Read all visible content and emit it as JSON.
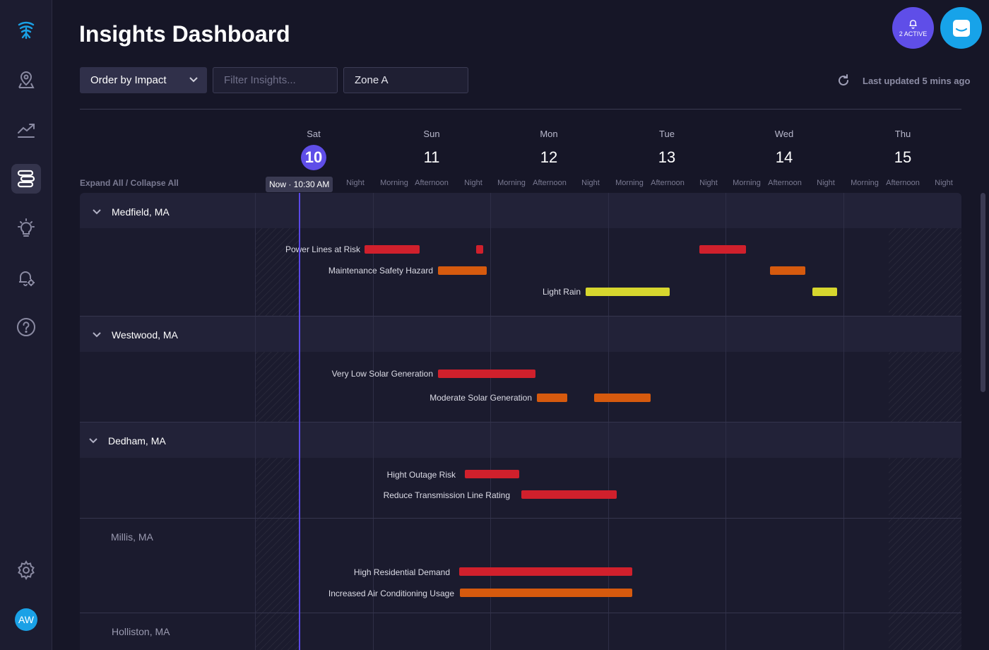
{
  "page_title": "Insights Dashboard",
  "sidebar": {
    "icons": [
      "logo-icon",
      "map-pin-icon",
      "trend-icon",
      "insights-icon",
      "lightbulb-icon",
      "alert-settings-icon",
      "help-icon",
      "settings-icon"
    ],
    "avatar_initials": "AW"
  },
  "header": {
    "notifications_label": "2 ACTIVE"
  },
  "toolbar": {
    "order_by": "Order by Impact",
    "filter_placeholder": "Filter Insights...",
    "zone_value": "Zone A",
    "last_updated": "Last updated 5 mins ago"
  },
  "timeline": {
    "expand_collapse": "Expand All / Collapse All",
    "now_label": "Now · 10:30 AM",
    "days": [
      {
        "name": "Sat",
        "num": "10",
        "today": true
      },
      {
        "name": "Sun",
        "num": "11"
      },
      {
        "name": "Mon",
        "num": "12"
      },
      {
        "name": "Tue",
        "num": "13"
      },
      {
        "name": "Wed",
        "num": "14"
      },
      {
        "name": "Thu",
        "num": "15"
      }
    ],
    "periods": [
      "Night",
      "Morning",
      "Afternoon",
      "Night",
      "Morning",
      "Afternoon",
      "Night",
      "Morning",
      "Afternoon",
      "Night",
      "Morning",
      "Afternoon",
      "Night",
      "Morning",
      "Afternoon",
      "Night"
    ]
  },
  "groups": [
    {
      "name": "Medfield, MA",
      "expandable": true,
      "insights": [
        {
          "label": "Power Lines at Risk",
          "severity": "red"
        },
        {
          "label": "Maintenance Safety Hazard",
          "severity": "orange"
        },
        {
          "label": "Light Rain",
          "severity": "yellow"
        }
      ]
    },
    {
      "name": "Westwood, MA",
      "expandable": true,
      "insights": [
        {
          "label": "Very Low Solar Generation",
          "severity": "red"
        },
        {
          "label": "Moderate Solar Generation",
          "severity": "orange"
        }
      ]
    },
    {
      "name": "Dedham, MA",
      "expandable": true,
      "insights": [
        {
          "label": "Hight Outage Risk",
          "severity": "red"
        },
        {
          "label": "Reduce Transmission Line Rating",
          "severity": "red"
        }
      ]
    },
    {
      "name": "Millis, MA",
      "expandable": false,
      "insights": [
        {
          "label": "High Residential Demand",
          "severity": "red"
        },
        {
          "label": "Increased Air Conditioning Usage",
          "severity": "orange"
        }
      ]
    },
    {
      "name": "Holliston, MA",
      "expandable": false,
      "insights": []
    }
  ],
  "colors": {
    "red": "#d0202c",
    "orange": "#d65a0e",
    "yellow": "#d6d62e",
    "accent": "#5f4ee8"
  }
}
